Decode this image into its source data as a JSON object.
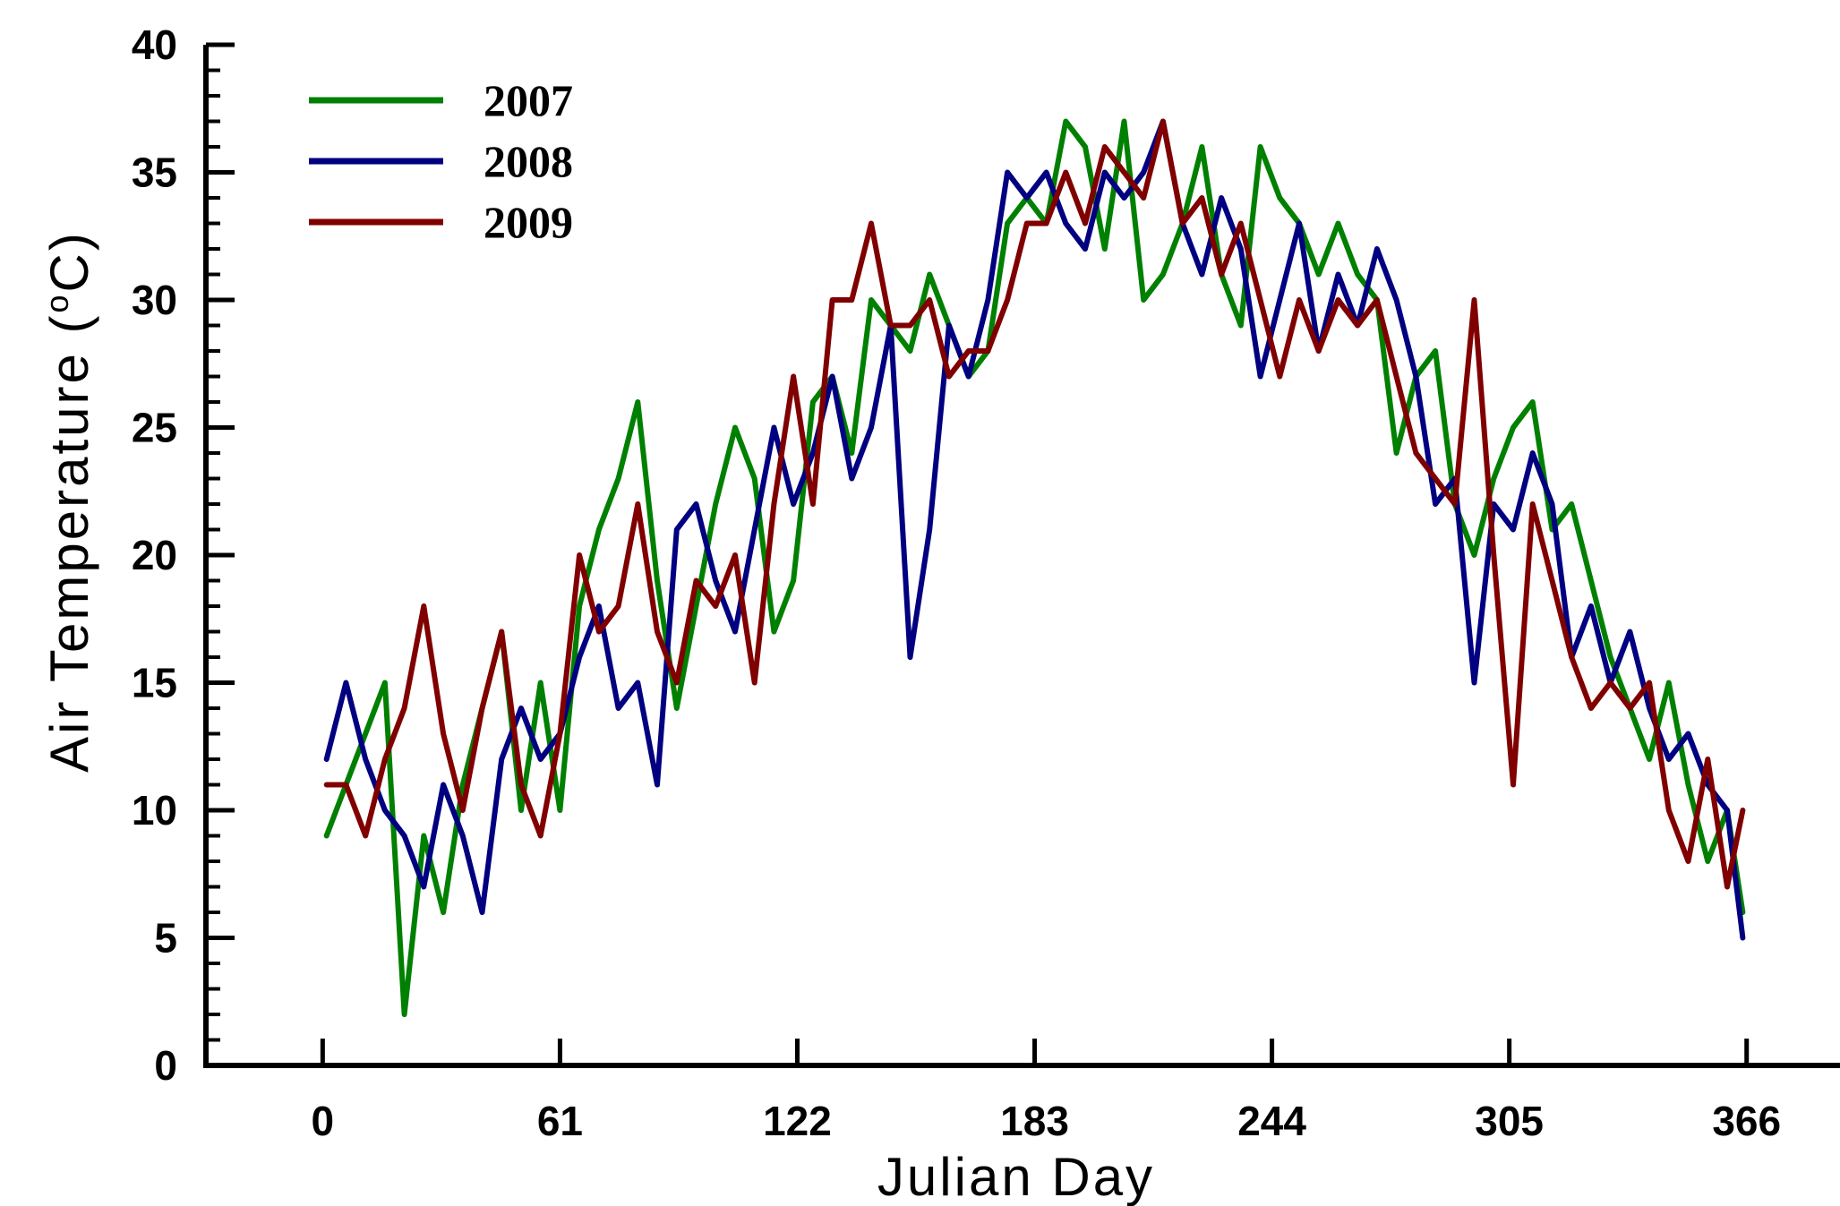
{
  "chart_data": {
    "type": "line",
    "title": "",
    "xlabel": "Julian Day",
    "ylabel": "Air Temperature (°C)",
    "ylabel_parts": {
      "prefix": "Air Temperature (",
      "sup": "o",
      "suffix": "C)"
    },
    "xlim": [
      -30,
      390
    ],
    "ylim": [
      0,
      40
    ],
    "x_ticks": [
      0,
      61,
      122,
      183,
      244,
      305,
      366
    ],
    "x_tick_labels": [
      "0",
      "61",
      "122",
      "183",
      "244",
      "305",
      "366"
    ],
    "y_ticks": [
      0,
      5,
      10,
      15,
      20,
      25,
      30,
      35,
      40
    ],
    "y_tick_labels": [
      "0",
      "5",
      "10",
      "15",
      "20",
      "25",
      "30",
      "35",
      "40"
    ],
    "grid": false,
    "legend_position": "top-left",
    "x": [
      1,
      6,
      11,
      16,
      21,
      26,
      31,
      36,
      41,
      46,
      51,
      56,
      61,
      66,
      71,
      76,
      81,
      86,
      91,
      96,
      101,
      106,
      111,
      116,
      121,
      126,
      131,
      136,
      141,
      146,
      151,
      156,
      161,
      166,
      171,
      176,
      181,
      186,
      191,
      196,
      201,
      206,
      211,
      216,
      221,
      226,
      231,
      236,
      241,
      246,
      251,
      256,
      261,
      266,
      271,
      276,
      281,
      286,
      291,
      296,
      301,
      306,
      311,
      316,
      321,
      326,
      331,
      336,
      341,
      346,
      351,
      356,
      361,
      365
    ],
    "series": [
      {
        "name": "2007",
        "color": "#008000",
        "values": [
          9,
          11,
          13,
          15,
          2,
          9,
          6,
          11,
          14,
          17,
          10,
          15,
          10,
          18,
          21,
          23,
          26,
          19,
          14,
          18,
          22,
          25,
          23,
          17,
          19,
          26,
          27,
          24,
          30,
          29,
          28,
          31,
          29,
          27,
          28,
          33,
          34,
          33,
          37,
          36,
          32,
          37,
          30,
          31,
          33,
          36,
          31,
          29,
          36,
          34,
          33,
          31,
          33,
          31,
          30,
          24,
          27,
          28,
          22,
          20,
          23,
          25,
          26,
          21,
          22,
          19,
          16,
          14,
          12,
          15,
          11,
          8,
          10,
          6
        ]
      },
      {
        "name": "2008",
        "color": "#000080",
        "values": [
          12,
          15,
          12,
          10,
          9,
          7,
          11,
          9,
          6,
          12,
          14,
          12,
          13,
          16,
          18,
          14,
          15,
          11,
          21,
          22,
          19,
          17,
          21,
          25,
          22,
          24,
          27,
          23,
          25,
          29,
          16,
          21,
          29,
          27,
          30,
          35,
          34,
          35,
          33,
          32,
          35,
          34,
          35,
          37,
          33,
          31,
          34,
          32,
          27,
          30,
          33,
          28,
          31,
          29,
          32,
          30,
          27,
          22,
          23,
          15,
          22,
          21,
          24,
          22,
          16,
          18,
          15,
          17,
          14,
          12,
          13,
          11,
          10,
          5
        ]
      },
      {
        "name": "2009",
        "color": "#800000",
        "values": [
          11,
          11,
          9,
          12,
          14,
          18,
          13,
          10,
          14,
          17,
          11,
          9,
          13,
          20,
          17,
          18,
          22,
          17,
          15,
          19,
          18,
          20,
          15,
          22,
          27,
          22,
          30,
          30,
          33,
          29,
          29,
          30,
          27,
          28,
          28,
          30,
          33,
          33,
          35,
          33,
          36,
          35,
          34,
          37,
          33,
          34,
          31,
          33,
          30,
          27,
          30,
          28,
          30,
          29,
          30,
          27,
          24,
          23,
          22,
          30,
          20,
          11,
          22,
          19,
          16,
          14,
          15,
          14,
          15,
          10,
          8,
          12,
          7,
          10
        ]
      }
    ]
  }
}
